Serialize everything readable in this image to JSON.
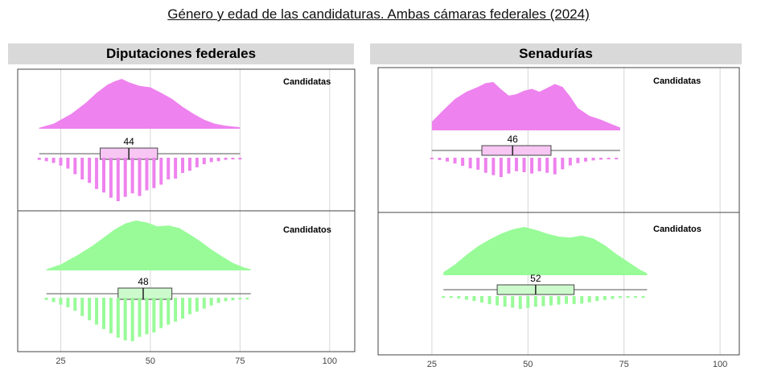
{
  "title": "Género y edad de las candidaturas. Ambas cámaras federales (2024)",
  "colors": {
    "female_fill": "#ee82ee",
    "female_box": "#f7c6f3",
    "male_fill": "#98fb98",
    "male_box": "#cdfacd",
    "header_bg": "#d9d9d9",
    "grid": "#d6d6d6"
  },
  "chart_data": [
    {
      "type": "raincloud",
      "title": "Diputaciones federales",
      "x_ticks": [
        25,
        50,
        75,
        100
      ],
      "xlim": [
        13,
        107
      ],
      "grid": true,
      "groups": [
        {
          "label": "Candidatas",
          "color": "#ee82ee",
          "median": 44,
          "median_label": "44",
          "box": {
            "min": 19,
            "q1": 36,
            "median": 44,
            "q3": 52,
            "max": 75
          },
          "density": [
            [
              19,
              0.02
            ],
            [
              23,
              0.1
            ],
            [
              28,
              0.3
            ],
            [
              32,
              0.52
            ],
            [
              35,
              0.72
            ],
            [
              38,
              0.88
            ],
            [
              40,
              0.95
            ],
            [
              42,
              1.0
            ],
            [
              44,
              0.93
            ],
            [
              47,
              0.86
            ],
            [
              50,
              0.83
            ],
            [
              53,
              0.72
            ],
            [
              56,
              0.6
            ],
            [
              59,
              0.44
            ],
            [
              62,
              0.3
            ],
            [
              65,
              0.18
            ],
            [
              68,
              0.1
            ],
            [
              71,
              0.06
            ],
            [
              75,
              0.03
            ]
          ],
          "histogram": [
            [
              19,
              0.05
            ],
            [
              21,
              0.08
            ],
            [
              23,
              0.12
            ],
            [
              25,
              0.18
            ],
            [
              27,
              0.25
            ],
            [
              29,
              0.38
            ],
            [
              31,
              0.5
            ],
            [
              33,
              0.58
            ],
            [
              35,
              0.72
            ],
            [
              37,
              0.8
            ],
            [
              39,
              0.92
            ],
            [
              41,
              1.0
            ],
            [
              43,
              0.9
            ],
            [
              45,
              0.82
            ],
            [
              47,
              0.88
            ],
            [
              49,
              0.75
            ],
            [
              51,
              0.7
            ],
            [
              53,
              0.62
            ],
            [
              55,
              0.5
            ],
            [
              57,
              0.48
            ],
            [
              59,
              0.35
            ],
            [
              61,
              0.3
            ],
            [
              63,
              0.22
            ],
            [
              65,
              0.15
            ],
            [
              67,
              0.1
            ],
            [
              69,
              0.08
            ],
            [
              71,
              0.05
            ],
            [
              73,
              0.04
            ],
            [
              75,
              0.04
            ]
          ]
        },
        {
          "label": "Candidatos",
          "color": "#98fb98",
          "median": 48,
          "median_label": "48",
          "box": {
            "min": 21,
            "q1": 41,
            "median": 48,
            "q3": 56,
            "max": 78
          },
          "density": [
            [
              21,
              0.02
            ],
            [
              25,
              0.12
            ],
            [
              30,
              0.32
            ],
            [
              34,
              0.5
            ],
            [
              37,
              0.66
            ],
            [
              40,
              0.82
            ],
            [
              43,
              0.94
            ],
            [
              46,
              1.0
            ],
            [
              49,
              0.96
            ],
            [
              52,
              0.88
            ],
            [
              55,
              0.9
            ],
            [
              58,
              0.85
            ],
            [
              61,
              0.72
            ],
            [
              64,
              0.58
            ],
            [
              67,
              0.42
            ],
            [
              70,
              0.28
            ],
            [
              73,
              0.15
            ],
            [
              76,
              0.06
            ],
            [
              78,
              0.02
            ]
          ],
          "histogram": [
            [
              21,
              0.05
            ],
            [
              23,
              0.1
            ],
            [
              25,
              0.16
            ],
            [
              27,
              0.22
            ],
            [
              29,
              0.3
            ],
            [
              31,
              0.42
            ],
            [
              33,
              0.52
            ],
            [
              35,
              0.62
            ],
            [
              37,
              0.72
            ],
            [
              39,
              0.82
            ],
            [
              41,
              0.92
            ],
            [
              43,
              0.98
            ],
            [
              45,
              1.0
            ],
            [
              47,
              0.9
            ],
            [
              49,
              0.84
            ],
            [
              51,
              0.8
            ],
            [
              53,
              0.7
            ],
            [
              55,
              0.62
            ],
            [
              57,
              0.55
            ],
            [
              59,
              0.48
            ],
            [
              61,
              0.38
            ],
            [
              63,
              0.32
            ],
            [
              65,
              0.25
            ],
            [
              67,
              0.18
            ],
            [
              69,
              0.12
            ],
            [
              71,
              0.08
            ],
            [
              73,
              0.06
            ],
            [
              75,
              0.04
            ],
            [
              77,
              0.04
            ]
          ]
        }
      ]
    },
    {
      "type": "raincloud",
      "title": "Senadurías",
      "x_ticks": [
        25,
        50,
        75,
        100
      ],
      "xlim": [
        11,
        105
      ],
      "grid": true,
      "groups": [
        {
          "label": "Candidatas",
          "color": "#ee82ee",
          "median": 46,
          "median_label": "46",
          "box": {
            "min": 25,
            "q1": 38,
            "median": 46,
            "q3": 56,
            "max": 74
          },
          "density": [
            [
              25,
              0.18
            ],
            [
              28,
              0.42
            ],
            [
              31,
              0.65
            ],
            [
              34,
              0.8
            ],
            [
              37,
              0.9
            ],
            [
              39,
              0.98
            ],
            [
              41,
              1.0
            ],
            [
              43,
              0.85
            ],
            [
              45,
              0.72
            ],
            [
              47,
              0.75
            ],
            [
              49,
              0.82
            ],
            [
              51,
              0.86
            ],
            [
              53,
              0.8
            ],
            [
              55,
              0.88
            ],
            [
              57,
              0.96
            ],
            [
              59,
              0.9
            ],
            [
              61,
              0.7
            ],
            [
              63,
              0.46
            ],
            [
              66,
              0.3
            ],
            [
              69,
              0.22
            ],
            [
              72,
              0.12
            ],
            [
              74,
              0.06
            ]
          ],
          "histogram": [
            [
              25,
              0.08
            ],
            [
              27,
              0.12
            ],
            [
              29,
              0.2
            ],
            [
              31,
              0.3
            ],
            [
              33,
              0.42
            ],
            [
              35,
              0.55
            ],
            [
              37,
              0.62
            ],
            [
              39,
              0.78
            ],
            [
              41,
              0.9
            ],
            [
              43,
              1.0
            ],
            [
              45,
              0.82
            ],
            [
              47,
              0.7
            ],
            [
              49,
              0.75
            ],
            [
              51,
              0.82
            ],
            [
              53,
              0.7
            ],
            [
              55,
              0.78
            ],
            [
              57,
              0.86
            ],
            [
              59,
              0.6
            ],
            [
              61,
              0.4
            ],
            [
              63,
              0.28
            ],
            [
              65,
              0.2
            ],
            [
              67,
              0.14
            ],
            [
              69,
              0.1
            ],
            [
              71,
              0.08
            ],
            [
              73,
              0.06
            ]
          ]
        },
        {
          "label": "Candidatos",
          "color": "#98fb98",
          "median": 52,
          "median_label": "52",
          "box": {
            "min": 28,
            "q1": 42,
            "median": 52,
            "q3": 62,
            "max": 81
          },
          "density": [
            [
              28,
              0.06
            ],
            [
              31,
              0.22
            ],
            [
              34,
              0.42
            ],
            [
              37,
              0.6
            ],
            [
              40,
              0.74
            ],
            [
              43,
              0.86
            ],
            [
              46,
              0.95
            ],
            [
              49,
              1.0
            ],
            [
              52,
              0.94
            ],
            [
              55,
              0.86
            ],
            [
              58,
              0.8
            ],
            [
              61,
              0.78
            ],
            [
              64,
              0.82
            ],
            [
              67,
              0.76
            ],
            [
              70,
              0.62
            ],
            [
              73,
              0.44
            ],
            [
              76,
              0.28
            ],
            [
              79,
              0.12
            ],
            [
              81,
              0.04
            ]
          ],
          "histogram": [
            [
              28,
              0.06
            ],
            [
              30,
              0.1
            ],
            [
              32,
              0.18
            ],
            [
              34,
              0.28
            ],
            [
              36,
              0.38
            ],
            [
              38,
              0.5
            ],
            [
              40,
              0.62
            ],
            [
              42,
              0.72
            ],
            [
              44,
              0.82
            ],
            [
              46,
              0.9
            ],
            [
              48,
              1.0
            ],
            [
              50,
              0.92
            ],
            [
              52,
              0.82
            ],
            [
              54,
              0.78
            ],
            [
              56,
              0.72
            ],
            [
              58,
              0.66
            ],
            [
              60,
              0.6
            ],
            [
              62,
              0.62
            ],
            [
              64,
              0.58
            ],
            [
              66,
              0.48
            ],
            [
              68,
              0.38
            ],
            [
              70,
              0.3
            ],
            [
              72,
              0.22
            ],
            [
              74,
              0.15
            ],
            [
              76,
              0.1
            ],
            [
              78,
              0.07
            ],
            [
              80,
              0.05
            ]
          ]
        }
      ]
    }
  ]
}
